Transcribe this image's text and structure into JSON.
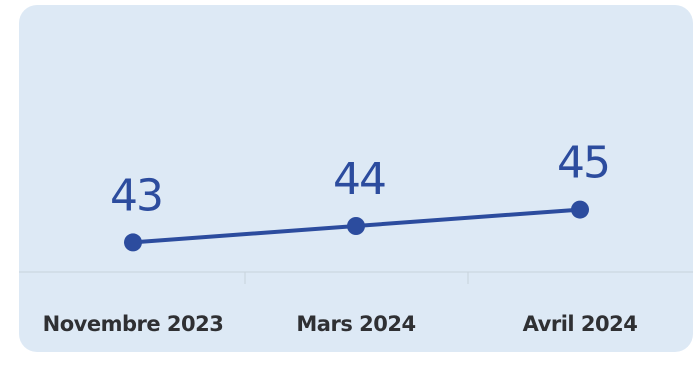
{
  "colors": {
    "background": "#dde9f5",
    "series": "#2c4c9e",
    "axis": "#c8d2dc",
    "text": "#2f3033"
  },
  "chart_data": {
    "type": "line",
    "categories": [
      "Novembre 2023",
      "Mars 2024",
      "Avril 2024"
    ],
    "series": [
      {
        "values": [
          43,
          44,
          45
        ]
      }
    ],
    "title": "",
    "xlabel": "",
    "ylabel": "",
    "ylim": [
      39,
      49
    ],
    "grid": false,
    "legend": "none",
    "data_labels": true
  }
}
